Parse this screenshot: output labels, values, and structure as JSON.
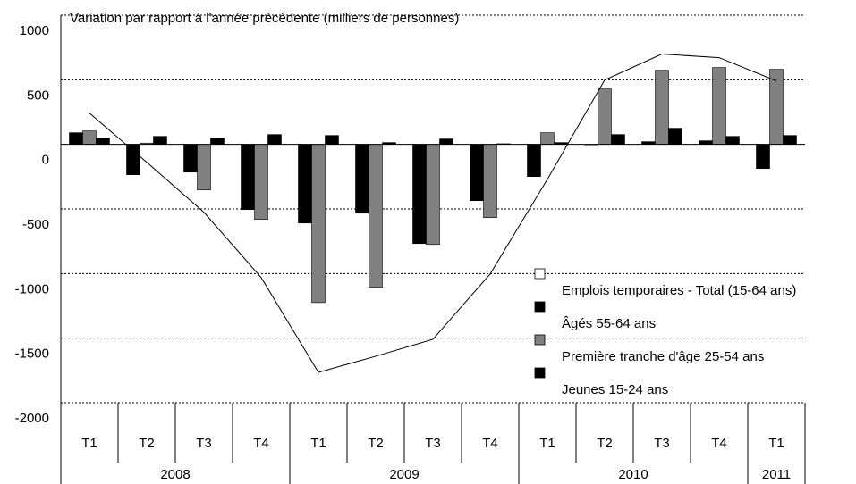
{
  "chart_data": {
    "type": "bar",
    "annotation": "Variation par rapport à l'année précédente (milliers de personnes)",
    "categories": [
      "T1",
      "T2",
      "T3",
      "T4",
      "T1",
      "T2",
      "T3",
      "T4",
      "T1",
      "T2",
      "T3",
      "T4",
      "T1"
    ],
    "x_groups": [
      "2008",
      "2009",
      "2010",
      "2011"
    ],
    "series": [
      {
        "name": "Emplois temporaires - Total (15-64 ans)",
        "type": "line",
        "color": "#ffffff",
        "values": [
          242,
          -138,
          -526,
          -1031,
          -1765,
          -1640,
          -1509,
          -1003,
          -270,
          498,
          699,
          671,
          491
        ]
      },
      {
        "name": "Âgés 55-64 ans",
        "color": "#000000",
        "values": [
          48,
          62,
          48,
          76,
          69,
          14,
          42,
          5,
          14,
          76,
          125,
          62,
          69
        ]
      },
      {
        "name": "Première tranche d'âge 25-54 ans",
        "color": "#808080",
        "values": [
          104,
          10,
          -353,
          -581,
          -1225,
          -1107,
          -775,
          -567,
          90,
          429,
          574,
          595,
          581
        ]
      },
      {
        "name": "Jeunes 15-24 ans",
        "color": "#000000",
        "values": [
          90,
          -235,
          -215,
          -505,
          -609,
          -533,
          -768,
          -436,
          -249,
          0,
          21,
          28,
          -187
        ]
      }
    ],
    "ylim": [
      -2000,
      1000
    ],
    "yticks": [
      -2000,
      -1500,
      -1000,
      -500,
      0,
      500,
      1000
    ],
    "grid": true
  }
}
